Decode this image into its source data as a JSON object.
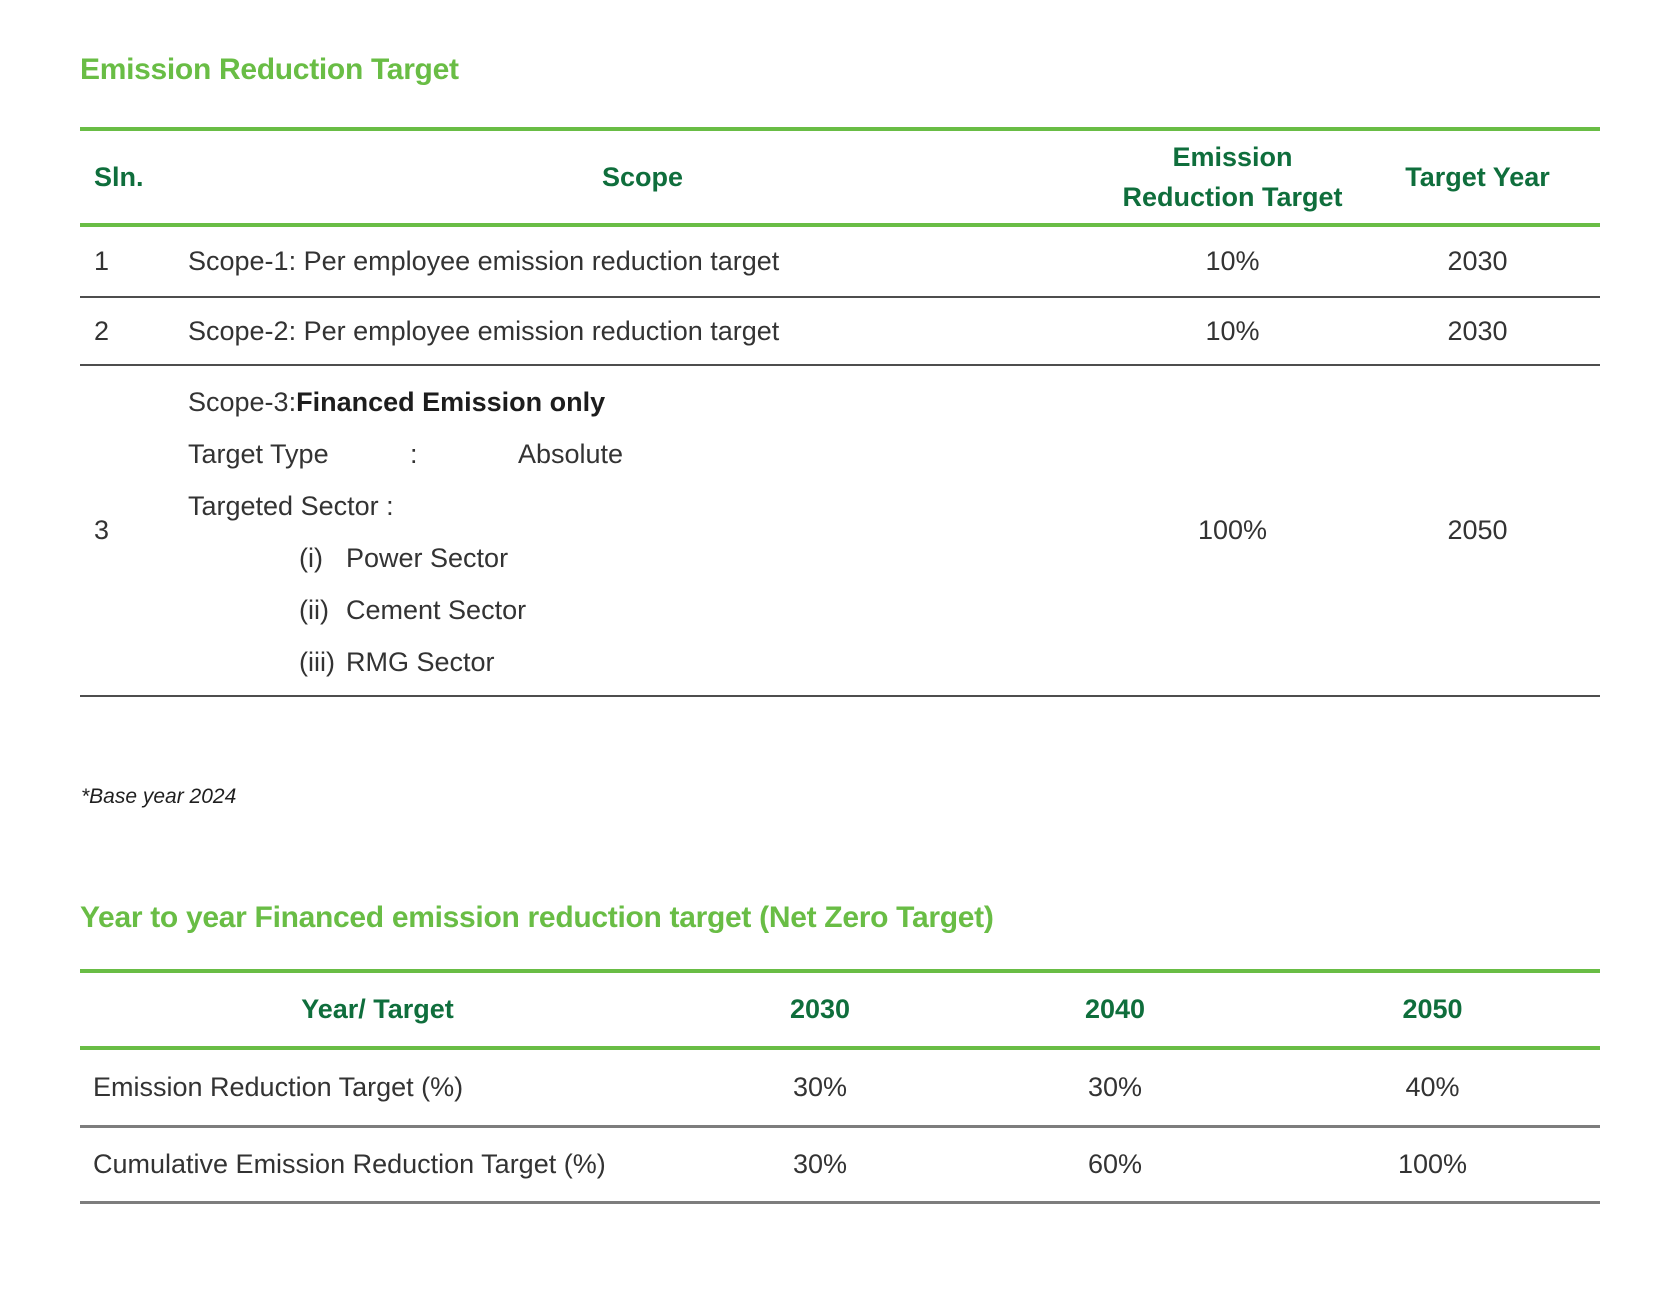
{
  "colors": {
    "accent_green": "#69bd45",
    "dark_green": "#0f6e3c"
  },
  "section1": {
    "title": "Emission Reduction Target",
    "table": {
      "headers": [
        "Sln.",
        "Scope",
        "Emission Reduction Target",
        "Target Year"
      ],
      "rows": [
        {
          "sln": "1",
          "scope": "Scope-1: Per employee emission reduction target",
          "target": "10%",
          "year": "2030"
        },
        {
          "sln": "2",
          "scope": "Scope-2: Per employee emission reduction target",
          "target": "10%",
          "year": "2030"
        },
        {
          "sln": "3",
          "scope_prefix": "Scope-3:",
          "scope_bold": "Financed Emission only",
          "target_type_label": "Target Type",
          "colon": ":",
          "target_type_value": "Absolute",
          "targeted_sector_label": "Targeted Sector :",
          "sectors": [
            {
              "num": "(i)",
              "name": "Power Sector"
            },
            {
              "num": "(ii)",
              "name": "Cement Sector"
            },
            {
              "num": "(iii)",
              "name": "RMG Sector"
            }
          ],
          "target": "100%",
          "year": "2050"
        }
      ]
    },
    "footnote": "*Base year 2024"
  },
  "section2": {
    "title": "Year to year Financed emission reduction target (Net Zero Target)",
    "table": {
      "headers": [
        "Year/ Target",
        "2030",
        "2040",
        "2050"
      ],
      "rows": [
        {
          "label": "Emission Reduction Target (%)",
          "values": [
            "30%",
            "30%",
            "40%"
          ]
        },
        {
          "label": "Cumulative Emission Reduction Target (%)",
          "values": [
            "30%",
            "60%",
            "100%"
          ]
        }
      ]
    }
  }
}
